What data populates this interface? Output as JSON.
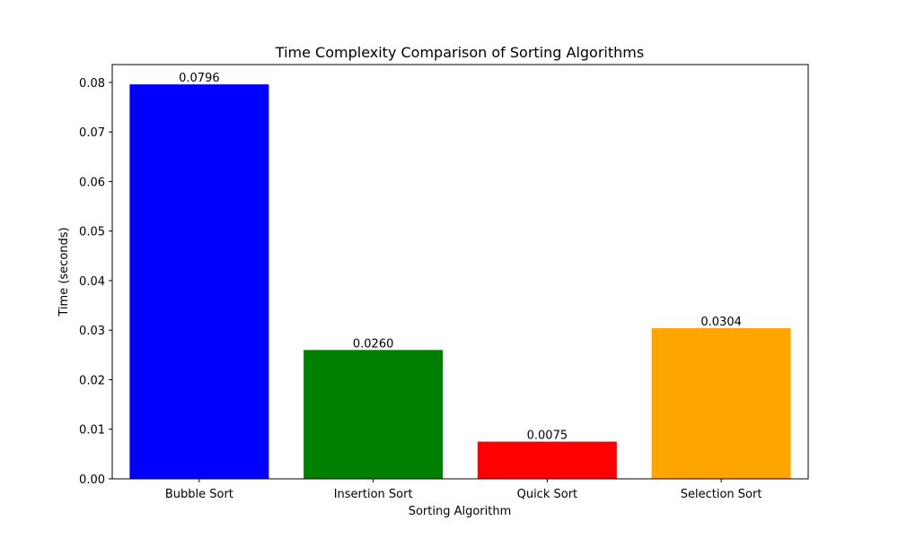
{
  "chart_data": {
    "type": "bar",
    "title": "Time Complexity Comparison of Sorting Algorithms",
    "xlabel": "Sorting Algorithm",
    "ylabel": "Time (seconds)",
    "categories": [
      "Bubble Sort",
      "Insertion Sort",
      "Quick Sort",
      "Selection Sort"
    ],
    "values": [
      0.0796,
      0.026,
      0.0075,
      0.0304
    ],
    "data_labels": [
      "0.0796",
      "0.0260",
      "0.0075",
      "0.0304"
    ],
    "colors": [
      "#0000ff",
      "#008000",
      "#ff0000",
      "#ffa500"
    ],
    "ylim": [
      0,
      0.0836
    ],
    "yticks": [
      0.0,
      0.01,
      0.02,
      0.03,
      0.04,
      0.05,
      0.06,
      0.07,
      0.08
    ],
    "ytick_labels": [
      "0.00",
      "0.01",
      "0.02",
      "0.03",
      "0.04",
      "0.05",
      "0.06",
      "0.07",
      "0.08"
    ],
    "grid": false,
    "legend": "none"
  }
}
